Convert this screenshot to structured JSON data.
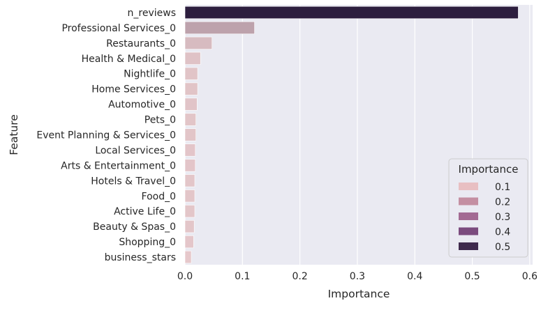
{
  "chart_data": {
    "type": "bar",
    "orientation": "horizontal",
    "xlabel": "Importance",
    "ylabel": "Feature",
    "xlim": [
      0,
      0.605
    ],
    "xticks": [
      0.0,
      0.1,
      0.2,
      0.3,
      0.4,
      0.5,
      0.6
    ],
    "xtick_labels": [
      "0.0",
      "0.1",
      "0.2",
      "0.3",
      "0.4",
      "0.5",
      "0.6"
    ],
    "grid": true,
    "categories": [
      "n_reviews",
      "Professional Services_0",
      "Restaurants_0",
      "Health & Medical_0",
      "Nightlife_0",
      "Home Services_0",
      "Automotive_0",
      "Pets_0",
      "Event Planning & Services_0",
      "Local Services_0",
      "Arts & Entertainment_0",
      "Hotels & Travel_0",
      "Food_0",
      "Active Life_0",
      "Beauty & Spas_0",
      "Shopping_0",
      "business_stars"
    ],
    "values": [
      0.58,
      0.121,
      0.047,
      0.027,
      0.022,
      0.022,
      0.021,
      0.019,
      0.019,
      0.018,
      0.018,
      0.017,
      0.017,
      0.017,
      0.016,
      0.015,
      0.011
    ],
    "legend": {
      "title": "Importance",
      "placement": "lower-right",
      "entries": [
        {
          "label": "0.1",
          "color": "#e8bfc2"
        },
        {
          "label": "0.2",
          "color": "#c48fa2"
        },
        {
          "label": "0.3",
          "color": "#a36a93"
        },
        {
          "label": "0.4",
          "color": "#7b4b7e"
        },
        {
          "label": "0.5",
          "color": "#3f2a4d"
        }
      ]
    },
    "colors": {
      "background": "#eaeaf2",
      "grid": "#ffffff",
      "bar_light": "#ebcdcf",
      "bar_dark": "#2d1e3e"
    }
  }
}
